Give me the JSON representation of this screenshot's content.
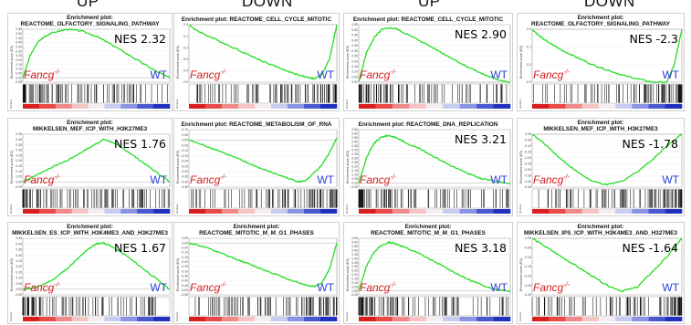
{
  "headers": [
    "UP",
    "DOWN",
    "UP",
    "DOWN"
  ],
  "labels": {
    "group_a": "Fancg",
    "group_a_sup": "-/-",
    "group_b": "WT",
    "ylabel": "Enrichment score (ES)",
    "rank_label": "Ranked"
  },
  "colors": {
    "curve": "#22dd22",
    "fancg": "#d62020",
    "wt": "#2a3fd4"
  },
  "chart_data": [
    {
      "type": "line",
      "title_line1": "Enrichment plot:",
      "title_line2": "REACTOME_OLFACTORY_SIGNALING_PATHWAY",
      "nes": "NES 2.32",
      "ylim": [
        -0.05,
        0.55
      ],
      "yticks": [
        "0.55",
        "0.50",
        "0.45",
        "0.40",
        "0.35",
        "0.30",
        "0.25",
        "0.20",
        "0.15",
        "0.10",
        "0.05",
        "0.00",
        "-0.05"
      ],
      "x": [
        0,
        5,
        10,
        15,
        20,
        30,
        40,
        50,
        60,
        70,
        80,
        90,
        100
      ],
      "y": [
        0,
        0.25,
        0.4,
        0.47,
        0.51,
        0.55,
        0.53,
        0.47,
        0.38,
        0.28,
        0.18,
        0.08,
        0.0
      ]
    },
    {
      "type": "line",
      "title_line1": "Enrichment plot: REACTOME_CELL_CYCLE_MITOTIC",
      "title_line2": "",
      "nes": "",
      "ylim": [
        -0.5,
        0.0
      ],
      "yticks": [
        "0.0",
        "-0.1",
        "-0.2",
        "-0.3",
        "-0.4",
        "-0.5"
      ],
      "x": [
        0,
        5,
        10,
        20,
        30,
        40,
        50,
        60,
        70,
        80,
        85,
        90,
        95,
        100
      ],
      "y": [
        0,
        -0.05,
        -0.08,
        -0.14,
        -0.2,
        -0.26,
        -0.32,
        -0.37,
        -0.42,
        -0.46,
        -0.47,
        -0.43,
        -0.3,
        0
      ]
    },
    {
      "type": "line",
      "title_line1": "Enrichment plot: REACTOME_CELL_CYCLE_MITOTIC",
      "title_line2": "",
      "nes": "NES 2.90",
      "ylim": [
        0.0,
        0.55
      ],
      "yticks": [
        "0.55",
        "0.50",
        "0.45",
        "0.40",
        "0.35",
        "0.30",
        "0.25",
        "0.20",
        "0.15",
        "0.10",
        "0.05",
        "0.00"
      ],
      "x": [
        0,
        5,
        10,
        15,
        20,
        25,
        30,
        40,
        50,
        60,
        70,
        80,
        90,
        100
      ],
      "y": [
        0,
        0.28,
        0.42,
        0.5,
        0.52,
        0.51,
        0.47,
        0.4,
        0.32,
        0.24,
        0.16,
        0.09,
        0.03,
        0
      ]
    },
    {
      "type": "line",
      "title_line1": "Enrichment plot:",
      "title_line2": "REACTOME_OLFACTORY_SIGNALING_PATHWAY",
      "nes": "NES -2.3",
      "ylim": [
        -0.3,
        0.0
      ],
      "yticks": [
        "0.0",
        "-0.1",
        "-0.2",
        "-0.3"
      ],
      "x": [
        0,
        5,
        10,
        20,
        30,
        40,
        50,
        60,
        70,
        80,
        90,
        95,
        100
      ],
      "y": [
        0,
        -0.04,
        -0.07,
        -0.12,
        -0.16,
        -0.2,
        -0.23,
        -0.26,
        -0.28,
        -0.3,
        -0.3,
        -0.2,
        0
      ]
    },
    {
      "type": "line",
      "title_line1": "Enrichment plot:",
      "title_line2": "MIKKELSEN_MEF_ICP_WITH_H3K27ME3",
      "nes": "NES 1.76",
      "ylim": [
        -0.05,
        0.45
      ],
      "yticks": [
        "0.45",
        "0.40",
        "0.35",
        "0.30",
        "0.25",
        "0.20",
        "0.15",
        "0.10",
        "0.05",
        "0.00",
        "-0.05"
      ],
      "x": [
        0,
        10,
        20,
        30,
        40,
        50,
        55,
        60,
        70,
        80,
        90,
        100
      ],
      "y": [
        0,
        0.07,
        0.14,
        0.2,
        0.28,
        0.36,
        0.4,
        0.38,
        0.3,
        0.2,
        0.1,
        0
      ]
    },
    {
      "type": "line",
      "title_line1": "Enrichment plot: REACTOME_METABOLISM_OF_RNA",
      "title_line2": "",
      "nes": "",
      "ylim": [
        -0.45,
        0.1
      ],
      "yticks": [
        "0.10",
        "0.05",
        "0.00",
        "-0.05",
        "-0.10",
        "-0.15",
        "-0.20",
        "-0.25",
        "-0.30",
        "-0.35",
        "-0.40",
        "-0.45"
      ],
      "x": [
        0,
        10,
        20,
        30,
        40,
        50,
        60,
        70,
        75,
        80,
        90,
        95,
        100
      ],
      "y": [
        0,
        -0.05,
        -0.1,
        -0.16,
        -0.22,
        -0.28,
        -0.33,
        -0.38,
        -0.4,
        -0.38,
        -0.24,
        -0.12,
        0.02
      ]
    },
    {
      "type": "line",
      "title_line1": "Enrichment plot: REACTOME_DNA_REPLICATION",
      "title_line2": "",
      "nes": "NES 3.21",
      "ylim": [
        -0.05,
        0.65
      ],
      "yticks": [
        "0.65",
        "0.60",
        "0.55",
        "0.50",
        "0.45",
        "0.40",
        "0.35",
        "0.30",
        "0.25",
        "0.20",
        "0.15",
        "0.10",
        "0.05",
        "0.00",
        "-0.05"
      ],
      "x": [
        0,
        5,
        10,
        15,
        20,
        25,
        30,
        40,
        50,
        60,
        70,
        80,
        90,
        100
      ],
      "y": [
        0,
        0.3,
        0.48,
        0.56,
        0.58,
        0.55,
        0.5,
        0.42,
        0.32,
        0.22,
        0.13,
        0.06,
        0.02,
        0
      ]
    },
    {
      "type": "line",
      "title_line1": "Enrichment plot:",
      "title_line2": "MIKKELSEN_MEF_ICP_WITH_H3K27ME3",
      "nes": "NES -1.78",
      "ylim": [
        -0.45,
        0.0
      ],
      "yticks": [
        "0.00",
        "-0.05",
        "-0.10",
        "-0.15",
        "-0.20",
        "-0.25",
        "-0.30",
        "-0.35",
        "-0.40",
        "-0.45"
      ],
      "x": [
        0,
        10,
        20,
        30,
        40,
        50,
        60,
        70,
        80,
        90,
        100
      ],
      "y": [
        0,
        -0.1,
        -0.22,
        -0.32,
        -0.4,
        -0.43,
        -0.4,
        -0.32,
        -0.22,
        -0.1,
        0
      ]
    },
    {
      "type": "line",
      "title_line1": "Enrichment plot:",
      "title_line2": "MIKKELSEN_ES_ICP_WITH_H3K4ME3_AND_H3K27ME3",
      "nes": "NES 1.67",
      "ylim": [
        -0.05,
        0.45
      ],
      "yticks": [
        "0.45",
        "0.40",
        "0.35",
        "0.30",
        "0.25",
        "0.20",
        "0.15",
        "0.10",
        "0.05",
        "0.00",
        "-0.05"
      ],
      "x": [
        0,
        10,
        20,
        30,
        40,
        45,
        50,
        55,
        60,
        70,
        80,
        90,
        100
      ],
      "y": [
        0,
        0.02,
        0.08,
        0.18,
        0.3,
        0.36,
        0.4,
        0.41,
        0.38,
        0.3,
        0.2,
        0.1,
        0
      ]
    },
    {
      "type": "line",
      "title_line1": "Enrichment plot:",
      "title_line2": "REACTOME_MITOTIC_M_M_G1_PHASES",
      "nes": "",
      "ylim": [
        -0.55,
        0.05
      ],
      "yticks": [
        "0.05",
        "0.00",
        "-0.05",
        "-0.10",
        "-0.15",
        "-0.20",
        "-0.25",
        "-0.30",
        "-0.35",
        "-0.40",
        "-0.45",
        "-0.50",
        "-0.55"
      ],
      "x": [
        0,
        10,
        20,
        30,
        40,
        50,
        60,
        70,
        80,
        85,
        90,
        95,
        100
      ],
      "y": [
        0,
        -0.04,
        -0.1,
        -0.16,
        -0.22,
        -0.28,
        -0.34,
        -0.4,
        -0.45,
        -0.46,
        -0.42,
        -0.28,
        0
      ]
    },
    {
      "type": "line",
      "title_line1": "Enrichment plot:",
      "title_line2": "REACTOME_MITOTIC_M_M_G1_PHASES",
      "nes": "NES 3.18",
      "ylim": [
        -0.05,
        0.65
      ],
      "yticks": [
        "0.65",
        "0.60",
        "0.55",
        "0.50",
        "0.45",
        "0.40",
        "0.35",
        "0.30",
        "0.25",
        "0.20",
        "0.15",
        "0.10",
        "0.05",
        "0.00",
        "-0.05"
      ],
      "x": [
        0,
        5,
        10,
        15,
        20,
        25,
        30,
        40,
        50,
        60,
        70,
        80,
        90,
        100
      ],
      "y": [
        0,
        0.3,
        0.48,
        0.56,
        0.6,
        0.58,
        0.54,
        0.46,
        0.36,
        0.26,
        0.16,
        0.08,
        0.02,
        0
      ]
    },
    {
      "type": "line",
      "title_line1": "Enrichment plot:",
      "title_line2": "MIKKELSEN_IPS_ICP_WITH_H3K4ME3_AND_H327ME3",
      "nes": "NES -1.64",
      "ylim": [
        -0.3,
        0.0
      ],
      "yticks": [
        "0.00",
        "-0.05",
        "-0.10",
        "-0.15",
        "-0.20",
        "-0.25",
        "-0.30"
      ],
      "x": [
        0,
        10,
        20,
        30,
        40,
        50,
        60,
        70,
        80,
        90,
        100
      ],
      "y": [
        0,
        -0.05,
        -0.1,
        -0.15,
        -0.2,
        -0.25,
        -0.28,
        -0.26,
        -0.18,
        -0.1,
        0
      ]
    }
  ]
}
